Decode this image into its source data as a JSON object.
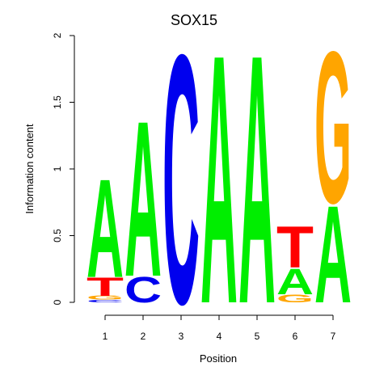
{
  "chart_data": {
    "type": "sequence-logo",
    "title": "SOX15",
    "xlabel": "Position",
    "ylabel": "Information content",
    "ylim": [
      0,
      2
    ],
    "y_ticks": [
      0,
      0.5,
      1,
      1.5,
      2
    ],
    "y_tick_labels": [
      "0",
      "0.5",
      "1",
      "1.5",
      "2"
    ],
    "positions": [
      "1",
      "2",
      "3",
      "4",
      "5",
      "6",
      "7"
    ],
    "colors": {
      "A": "#00ee00",
      "C": "#0000ee",
      "G": "#ffa500",
      "T": "#ff0000"
    },
    "stacks": [
      [
        {
          "letter": "C",
          "value": 0.02
        },
        {
          "letter": "G",
          "value": 0.03
        },
        {
          "letter": "T",
          "value": 0.14
        },
        {
          "letter": "A",
          "value": 0.76
        }
      ],
      [
        {
          "letter": "C",
          "value": 0.2
        },
        {
          "letter": "A",
          "value": 1.2
        }
      ],
      [
        {
          "letter": "C",
          "value": 1.92
        }
      ],
      [
        {
          "letter": "A",
          "value": 1.92
        }
      ],
      [
        {
          "letter": "A",
          "value": 1.92
        }
      ],
      [
        {
          "letter": "G",
          "value": 0.06
        },
        {
          "letter": "A",
          "value": 0.2
        },
        {
          "letter": "T",
          "value": 0.32
        }
      ],
      [
        {
          "letter": "A",
          "value": 0.75
        },
        {
          "letter": "G",
          "value": 1.17
        }
      ]
    ]
  }
}
